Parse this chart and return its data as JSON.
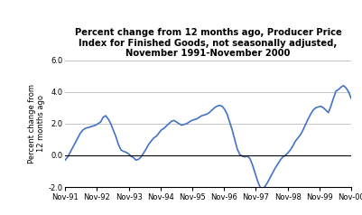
{
  "title": "Percent change from 12 months ago, Producer Price\nIndex for Finished Goods, not seasonally adjusted,\nNovember 1991-November 2000",
  "ylabel": "Percent change from\n12 months ago",
  "ylim": [
    -2.0,
    6.0
  ],
  "yticks": [
    -2.0,
    0.0,
    2.0,
    4.0,
    6.0
  ],
  "line_color": "#4472C4",
  "background_color": "#ffffff",
  "grid_color": "#b0b0b0",
  "title_fontsize": 7.2,
  "ylabel_fontsize": 6.0,
  "tick_fontsize": 6.0,
  "xtick_labels": [
    "Nov-91",
    "Nov-92",
    "Nov-93",
    "Nov-94",
    "Nov-95",
    "Nov-96",
    "Nov-97",
    "Nov-98",
    "Nov-99",
    "Nov-00"
  ],
  "values": [
    -0.3,
    -0.1,
    0.2,
    0.5,
    0.8,
    1.1,
    1.4,
    1.6,
    1.7,
    1.75,
    1.8,
    1.85,
    1.9,
    2.0,
    2.1,
    2.4,
    2.5,
    2.3,
    2.0,
    1.6,
    1.2,
    0.7,
    0.35,
    0.25,
    0.2,
    0.1,
    -0.05,
    -0.15,
    -0.3,
    -0.25,
    -0.1,
    0.15,
    0.4,
    0.7,
    0.9,
    1.1,
    1.2,
    1.4,
    1.6,
    1.7,
    1.85,
    2.0,
    2.15,
    2.2,
    2.1,
    2.0,
    1.9,
    1.95,
    2.0,
    2.1,
    2.2,
    2.25,
    2.3,
    2.4,
    2.5,
    2.55,
    2.6,
    2.7,
    2.85,
    3.0,
    3.1,
    3.15,
    3.1,
    2.9,
    2.6,
    2.1,
    1.6,
    1.0,
    0.4,
    0.05,
    -0.05,
    -0.1,
    -0.05,
    -0.2,
    -0.6,
    -1.1,
    -1.6,
    -2.0,
    -2.1,
    -1.95,
    -1.7,
    -1.4,
    -1.1,
    -0.8,
    -0.55,
    -0.3,
    -0.1,
    0.0,
    0.15,
    0.35,
    0.6,
    0.9,
    1.1,
    1.3,
    1.6,
    1.95,
    2.3,
    2.6,
    2.85,
    3.0,
    3.05,
    3.1,
    3.0,
    2.85,
    2.7,
    3.1,
    3.6,
    4.05,
    4.15,
    4.3,
    4.4,
    4.25,
    4.0,
    3.6
  ]
}
